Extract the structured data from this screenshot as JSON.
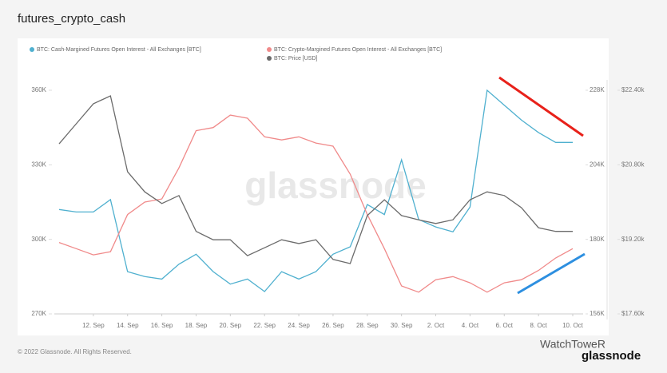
{
  "chart_data": {
    "type": "line",
    "title": "futures_crypto_cash",
    "categories": [
      null,
      null,
      "12. Sep",
      null,
      "14. Sep",
      null,
      "16. Sep",
      null,
      "18. Sep",
      null,
      "20. Sep",
      null,
      "22. Sep",
      null,
      "24. Sep",
      null,
      "26. Sep",
      null,
      "28. Sep",
      null,
      "30. Sep",
      null,
      "2. Oct",
      null,
      "4. Oct",
      null,
      "6. Oct",
      null,
      "8. Oct",
      null,
      "10. Oct"
    ],
    "series": [
      {
        "name": "BTC: Cash-Margined Futures Open Interest - All Exchanges [BTC]",
        "color": "#4fb0cf",
        "axis": "y",
        "values": [
          312,
          311,
          311,
          316,
          287,
          285,
          284,
          290,
          294,
          287,
          282,
          284,
          279,
          287,
          284,
          287,
          294,
          297,
          314,
          310,
          332,
          308,
          305,
          303,
          313,
          360,
          354,
          348,
          343,
          339,
          339
        ]
      },
      {
        "name": "BTC: Crypto-Margined Futures Open Interest - All Exchanges [BTC]",
        "color": "#f08a8a",
        "axis": "y2",
        "values": [
          179,
          177,
          175,
          176,
          188,
          192,
          193,
          203,
          215,
          216,
          220,
          219,
          213,
          212,
          213,
          211,
          210,
          201,
          188,
          177,
          165,
          163,
          167,
          168,
          166,
          163,
          166,
          167,
          170,
          174,
          177
        ]
      },
      {
        "name": "BTC: Price [USD]",
        "color": "#6b6b6b",
        "axis": "y3",
        "values": [
          21.25,
          21.68,
          22.11,
          22.28,
          20.65,
          20.22,
          19.97,
          20.14,
          19.37,
          19.19,
          19.19,
          18.85,
          19.02,
          19.19,
          19.11,
          19.19,
          18.77,
          18.68,
          19.71,
          20.05,
          19.71,
          19.62,
          19.54,
          19.62,
          20.05,
          20.22,
          20.14,
          19.88,
          19.45,
          19.37,
          19.37
        ]
      }
    ],
    "ylim": [
      270,
      360
    ],
    "yticks": [
      {
        "value": 270,
        "label": "270K"
      },
      {
        "value": 300,
        "label": "300K"
      },
      {
        "value": 330,
        "label": "330K"
      },
      {
        "value": 360,
        "label": "360K"
      }
    ],
    "y2lim": [
      156,
      228
    ],
    "y2ticks": [
      {
        "value": 156,
        "label": "156K"
      },
      {
        "value": 180,
        "label": "180K"
      },
      {
        "value": 204,
        "label": "204K"
      },
      {
        "value": 228,
        "label": "228K"
      }
    ],
    "y3lim": [
      17.6,
      22.4
    ],
    "y3ticks": [
      {
        "value": 17.6,
        "label": "$17.60k"
      },
      {
        "value": 19.2,
        "label": "$19.20k"
      },
      {
        "value": 20.8,
        "label": "$20.80k"
      },
      {
        "value": 22.4,
        "label": "$22.40k"
      }
    ],
    "grid": false,
    "annotations": [
      "glassnode",
      "© 2022 Glassnode. All Rights Reserved.",
      "WatchToweR",
      "glassnode"
    ]
  }
}
